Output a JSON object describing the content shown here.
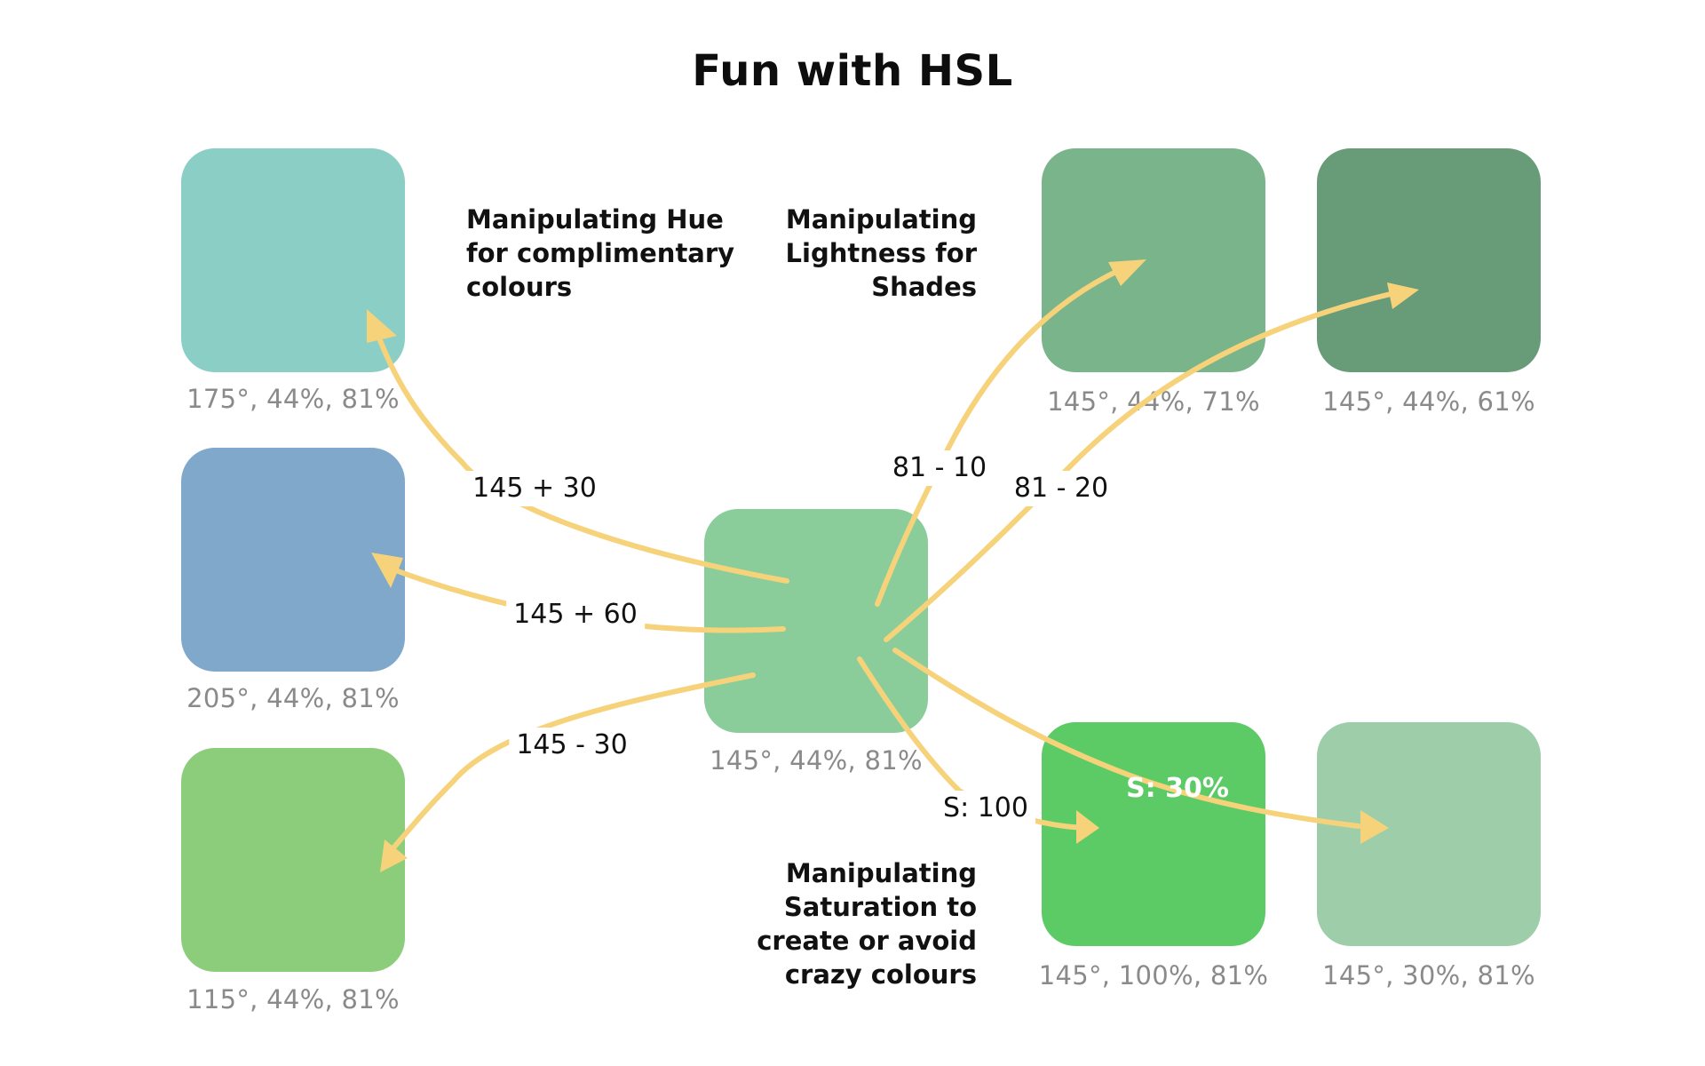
{
  "title": "Fun with HSL",
  "headings": {
    "hue": [
      "Manipulating Hue",
      "for complimentary",
      "colours"
    ],
    "lightness": [
      "Manipulating",
      "Lightness for",
      "Shades"
    ],
    "saturation": [
      "Manipulating",
      "Saturation to",
      "create or avoid",
      "crazy colours"
    ]
  },
  "swatches": {
    "base": {
      "label": "145°, 44%, 81%",
      "color": "#8acd9b"
    },
    "hue_plus_30": {
      "label": "175°, 44%, 81%",
      "color": "#8bcec5"
    },
    "hue_plus_60": {
      "label": "205°, 44%, 81%",
      "color": "#80a8cb"
    },
    "hue_minus_30": {
      "label": "115°, 44%, 81%",
      "color": "#8ccd7b"
    },
    "light_71": {
      "label": "145°, 44%, 71%",
      "color": "#7ab48a"
    },
    "light_61": {
      "label": "145°, 44%, 61%",
      "color": "#689b77"
    },
    "sat_100": {
      "label": "145°, 100%, 81%",
      "color": "#5ccb66"
    },
    "sat_30": {
      "label": "145°, 30%, 81%",
      "color": "#9ecdaa"
    }
  },
  "operations": {
    "hue_plus_30": "145 + 30",
    "hue_plus_60": "145 + 60",
    "hue_minus_30": "145 - 30",
    "light_minus_10": "81 - 10",
    "light_minus_20": "81 - 20",
    "sat_100": "S: 100",
    "sat_30": "S: 30%"
  },
  "colors": {
    "arrow": "#f6d27a",
    "caption": "#8a8a8a",
    "text": "#111111"
  }
}
